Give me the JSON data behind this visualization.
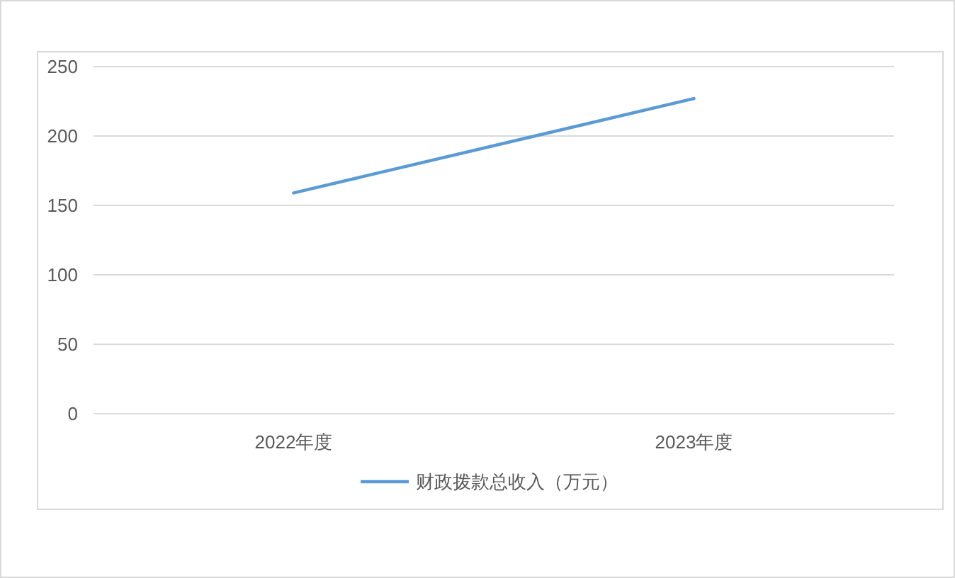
{
  "chart_data": {
    "type": "line",
    "categories": [
      "2022年度",
      "2023年度"
    ],
    "series": [
      {
        "name": "财政拨款总收入（万元）",
        "color": "#5b9bd5",
        "values": [
          159,
          227
        ]
      }
    ],
    "ylim": [
      0,
      250
    ],
    "yticks": [
      0,
      50,
      100,
      150,
      200,
      250
    ],
    "grid": "y",
    "legend": "bottom"
  }
}
